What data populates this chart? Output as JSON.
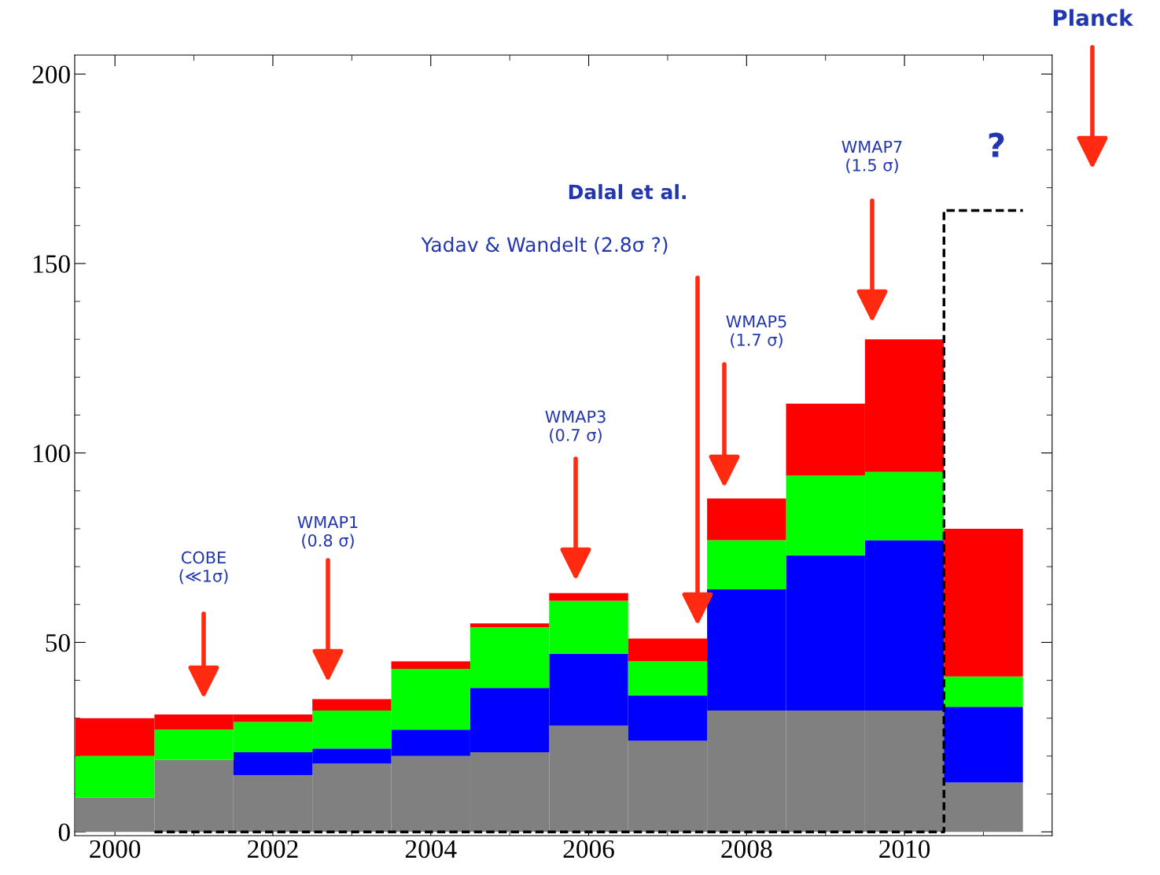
{
  "chart_data": {
    "type": "bar",
    "stacked": true,
    "x": [
      2000,
      2001,
      2002,
      2003,
      2004,
      2005,
      2006,
      2007,
      2008,
      2009,
      2010,
      2011
    ],
    "series": [
      {
        "color": "#808080",
        "values": [
          9,
          19,
          15,
          18,
          20,
          21,
          28,
          24,
          32,
          32,
          32,
          13
        ]
      },
      {
        "color": "#0000ff",
        "values": [
          0,
          0,
          6,
          4,
          7,
          17,
          19,
          12,
          32,
          41,
          45,
          20
        ]
      },
      {
        "color": "#00ff00",
        "values": [
          11,
          8,
          8,
          10,
          16,
          16,
          14,
          9,
          13,
          21,
          18,
          8
        ]
      },
      {
        "color": "#ff0000",
        "values": [
          10,
          4,
          2,
          3,
          2,
          1,
          2,
          6,
          11,
          19,
          35,
          39
        ]
      },
      {
        "type": "line",
        "color": "#000000",
        "line_style": "dashed",
        "marker": "none",
        "x": [
          2000.5,
          2010.5,
          2010.5,
          2011.5
        ],
        "values": [
          0,
          0,
          164,
          164
        ]
      }
    ],
    "xlim": [
      1999.49,
      2011.87
    ],
    "ylim": [
      -1,
      205
    ],
    "xticks": [
      2000,
      2002,
      2004,
      2006,
      2008,
      2010
    ],
    "yticks": [
      0,
      50,
      100,
      150,
      200
    ],
    "grid": false,
    "legend": false,
    "annotations": [
      "COBE\n(≪1σ)",
      "WMAP1\n(0.8 σ)",
      "WMAP3\n(0.7 σ)",
      "Yadav & Wandelt (2.8σ ?)",
      "Dalal et al.",
      "WMAP5\n(1.7 σ)",
      "WMAP7\n(1.5 σ)",
      "?",
      "Planck"
    ]
  }
}
